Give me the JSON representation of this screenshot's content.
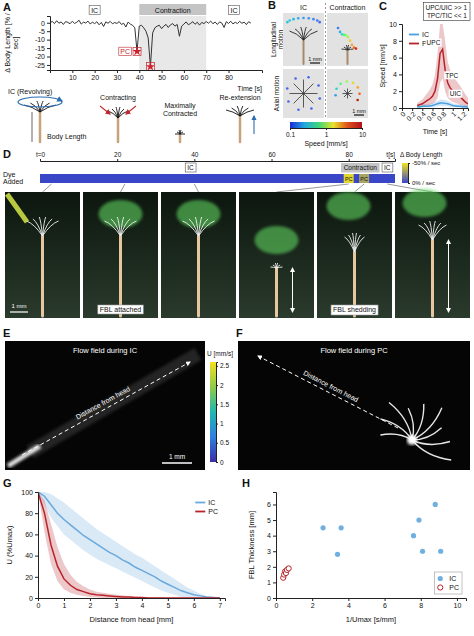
{
  "chart_data": [
    {
      "panel": "A",
      "type": "line",
      "y_label": "Δ Body Length [% / sec]",
      "x_label": "Time [s]",
      "color": "#333333",
      "xlim": [
        0,
        95
      ],
      "xticks": [
        10,
        20,
        30,
        40,
        50,
        60,
        70,
        80
      ],
      "ylim": [
        -28,
        4
      ],
      "yticks": [
        -25,
        -20,
        -15,
        -10,
        -5,
        0
      ],
      "x": [
        0,
        1,
        2,
        3,
        4,
        5,
        6,
        7,
        8,
        9,
        10,
        11,
        12,
        13,
        14,
        15,
        16,
        17,
        18,
        19,
        20,
        21,
        22,
        23,
        24,
        25,
        26,
        27,
        28,
        29,
        30,
        31,
        32,
        33,
        34,
        35,
        36,
        37,
        38,
        39,
        40,
        41,
        42,
        43,
        44,
        45,
        46,
        47,
        48,
        49,
        50,
        51,
        52,
        53,
        54,
        55,
        56,
        57,
        58,
        59,
        60,
        61,
        62,
        63,
        64,
        65,
        66,
        67,
        68,
        69,
        70,
        71,
        72,
        73,
        74,
        75,
        76,
        77,
        78,
        79,
        80,
        81,
        82,
        83,
        84,
        85,
        86,
        87,
        88,
        89,
        90
      ],
      "values": [
        0,
        0.8,
        -0.5,
        1.2,
        -0.3,
        0.5,
        -1,
        0.7,
        0.2,
        -0.6,
        0.9,
        -0.4,
        0.3,
        1.5,
        -0.8,
        0.4,
        -0.2,
        1,
        -0.7,
        0.3,
        -0.5,
        0.6,
        -1.2,
        0.2,
        -2.2,
        0.5,
        -0.3,
        0.8,
        -0.6,
        0.1,
        -0.4,
        0.7,
        -1,
        -0.3,
        -2.5,
        0.4,
        -0.8,
        -1.5,
        -3,
        -17,
        -2,
        -1.5,
        -3,
        -5,
        -9,
        -26,
        -6,
        -3,
        -2,
        -1.5,
        -3.5,
        -2,
        -1,
        -2.8,
        -1.2,
        -0.5,
        -2,
        -1,
        -8,
        -2,
        -0.8,
        0.5,
        -1.2,
        -0.4,
        0.6,
        -0.9,
        0.3,
        -1.4,
        0.2,
        -0.5,
        0.7,
        -0.3,
        1,
        -0.6,
        0.4,
        -1,
        0.5,
        -0.2,
        -2.8,
        0.6,
        -0.4,
        0.9,
        -0.7,
        0.3,
        -0.5,
        0.8,
        -0.3,
        0.4,
        -1.1,
        0.6,
        -0.2
      ],
      "phases": [
        {
          "label": "IC",
          "x0": 0,
          "x1": 40
        },
        {
          "label": "Contraction",
          "x0": 40,
          "x1": 70
        },
        {
          "label": "IC",
          "x0": 70,
          "x1": 95
        }
      ],
      "shade": {
        "x0": 40,
        "x1": 70
      },
      "peaks": [
        {
          "x": 39,
          "y": -17
        },
        {
          "x": 45,
          "y": -26
        }
      ],
      "peak_label": "PC",
      "cartoon_labels": [
        "IC (Revolving)",
        "Body Length",
        "Contracting",
        "Maximally Contracted",
        "Re-extension"
      ]
    },
    {
      "panel": "C",
      "type": "line",
      "x_label": "Time [s]",
      "y_label": "Speed [mm/s]",
      "xlim": [
        0,
        1.3
      ],
      "xticks": [
        0,
        0.2,
        0.4,
        0.6,
        0.8,
        1,
        1.2
      ],
      "ylim": [
        0,
        10
      ],
      "yticks": [
        0,
        2,
        4,
        6,
        8,
        10
      ],
      "legend": "top-left",
      "x": [
        0.3,
        0.35,
        0.4,
        0.45,
        0.5,
        0.55,
        0.6,
        0.65,
        0.7,
        0.75,
        0.8,
        0.85,
        0.9,
        0.95,
        1,
        1.05,
        1.1,
        1.15,
        1.2,
        1.25,
        1.3
      ],
      "series": [
        {
          "name": "IC",
          "color": "#4a9fe0",
          "values": [
            0.15,
            0.15,
            0.2,
            0.2,
            0.2,
            0.25,
            0.3,
            0.4,
            0.5,
            0.6,
            0.6,
            0.55,
            0.5,
            0.4,
            0.3,
            0.25,
            0.2,
            0.2,
            0.15,
            0.15,
            0.1
          ],
          "upper": [
            0.4,
            0.4,
            0.45,
            0.45,
            0.45,
            0.5,
            0.6,
            0.7,
            0.85,
            1,
            1,
            0.95,
            0.85,
            0.7,
            0.55,
            0.5,
            0.45,
            0.45,
            0.4,
            0.4,
            0.35
          ],
          "lower": [
            0,
            0,
            0.05,
            0.05,
            0.05,
            0.1,
            0.1,
            0.15,
            0.2,
            0.25,
            0.25,
            0.2,
            0.2,
            0.15,
            0.1,
            0.1,
            0.05,
            0.05,
            0,
            0,
            0
          ]
        },
        {
          "name": "PC",
          "color": "#b8232a",
          "values": [
            0.3,
            0.4,
            0.5,
            0.7,
            0.9,
            1.1,
            1.4,
            2,
            3.5,
            6.5,
            7,
            4.5,
            3,
            2.4,
            2,
            1.8,
            1.6,
            1.3,
            1,
            0.7,
            0.5
          ],
          "upper": [
            0.6,
            0.8,
            1,
            1.4,
            1.8,
            2.2,
            2.8,
            4,
            6.5,
            10,
            10,
            8,
            5.5,
            4.5,
            3.8,
            3.4,
            3,
            2.6,
            2.1,
            1.6,
            1.2
          ],
          "lower": [
            0.1,
            0.1,
            0.15,
            0.2,
            0.3,
            0.4,
            0.5,
            0.7,
            1.2,
            3,
            3.5,
            2,
            1.2,
            0.9,
            0.7,
            0.6,
            0.5,
            0.4,
            0.3,
            0.2,
            0.1
          ]
        }
      ],
      "annotations": [
        {
          "text": "UPC",
          "x": 0.62,
          "y": 7.5
        },
        {
          "text": "TPC",
          "x": 0.98,
          "y": 3.6
        },
        {
          "text": "UIC",
          "x": 1.05,
          "y": 1.4
        }
      ],
      "ratio_box": [
        "UPC/UIC >> 1",
        "TPC/TIC << 1"
      ]
    },
    {
      "panel": "G",
      "type": "line",
      "x_label": "Distance from head [mm]",
      "y_label": "U (%Umax)",
      "xlim": [
        0,
        7.2
      ],
      "xticks": [
        0,
        1,
        2,
        3,
        4,
        5,
        6,
        7
      ],
      "ylim": [
        0,
        100
      ],
      "yticks": [
        0,
        20,
        40,
        60,
        80,
        100
      ],
      "legend": "top-right",
      "x": [
        0,
        0.25,
        0.5,
        0.75,
        1,
        1.25,
        1.5,
        1.75,
        2,
        2.25,
        2.5,
        2.75,
        3,
        3.25,
        3.5,
        3.75,
        4,
        4.25,
        4.5,
        4.75,
        5,
        5.25,
        5.5,
        5.75,
        6,
        6.25,
        6.5,
        6.75,
        7
      ],
      "series": [
        {
          "name": "IC",
          "color": "#6aa9dc",
          "values": [
            100,
            96,
            88,
            80,
            74,
            69,
            64,
            59,
            55,
            51,
            47,
            43,
            40,
            36,
            33,
            29,
            26,
            23,
            20,
            16,
            13,
            10,
            7,
            5,
            3,
            2,
            1,
            0.5,
            0
          ],
          "upper": [
            100,
            100,
            98,
            94,
            90,
            85,
            80,
            75,
            70,
            65,
            61,
            57,
            53,
            49,
            45,
            41,
            38,
            34,
            30,
            26,
            22,
            18,
            14,
            10,
            7,
            4,
            2,
            1,
            0.5
          ],
          "lower": [
            100,
            88,
            76,
            68,
            60,
            55,
            50,
            45,
            41,
            37,
            34,
            31,
            28,
            25,
            22,
            19,
            16,
            13,
            10,
            7,
            5,
            3,
            1,
            0,
            0,
            0,
            0,
            0,
            0
          ]
        },
        {
          "name": "PC",
          "color": "#b8232a",
          "values": [
            100,
            80,
            50,
            30,
            18,
            12,
            8,
            6,
            4,
            3,
            2.5,
            2,
            1.5,
            1,
            1,
            0.5,
            0.5,
            0,
            0,
            0,
            0,
            0,
            0,
            0,
            0,
            0,
            0,
            0,
            0
          ],
          "upper": [
            100,
            92,
            70,
            48,
            32,
            22,
            15,
            11,
            8,
            6,
            5,
            4,
            3,
            2.5,
            2,
            1.5,
            1,
            1,
            0.5,
            0.5,
            0,
            0,
            0,
            0,
            0,
            0,
            0,
            0,
            0
          ],
          "lower": [
            100,
            62,
            32,
            16,
            8,
            5,
            3,
            2,
            1,
            0.5,
            0,
            0,
            0,
            0,
            0,
            0,
            0,
            0,
            0,
            0,
            0,
            0,
            0,
            0,
            0,
            0,
            0,
            0,
            0
          ]
        }
      ]
    },
    {
      "panel": "H",
      "type": "scatter",
      "x_label": "1/Umax [s/mm]",
      "y_label": "FBL Thickness [mm]",
      "xlim": [
        0,
        10.5
      ],
      "xticks": [
        0,
        2,
        4,
        6,
        8,
        10
      ],
      "ylim": [
        0,
        6.8
      ],
      "yticks": [
        0,
        1,
        2,
        3,
        4,
        5,
        6
      ],
      "legend": "bottom-right",
      "series": [
        {
          "name": "IC",
          "color": "#6fb0e0",
          "marker": "circle",
          "x": [
            2.6,
            3.4,
            3.6,
            7.6,
            7.9,
            8.1,
            8.8,
            9.1
          ],
          "values": [
            4.5,
            2.8,
            4.5,
            4,
            5,
            3,
            6,
            3
          ]
        },
        {
          "name": "PC",
          "color": "#b8232a",
          "marker": "open_circle",
          "x": [
            0.4,
            0.45,
            0.5,
            0.55,
            0.6,
            0.7
          ],
          "values": [
            1.3,
            1.5,
            1.7,
            1.6,
            1.8,
            1.9
          ]
        }
      ]
    }
  ],
  "panels": {
    "B": {
      "letter": "B",
      "columns": [
        "IC",
        "Contraction"
      ],
      "rows": [
        "Longitudinal motion",
        "Axial motion"
      ],
      "scale_bars": [
        "1 mm",
        "1 mm"
      ],
      "colorbar": {
        "title": "Speed [mm/s]",
        "range": [
          0.1,
          10
        ],
        "ticks": [
          0.1,
          1,
          10
        ],
        "log": true
      }
    },
    "D": {
      "letter": "D",
      "dye_label": "Dye Added",
      "xlim": [
        0,
        92
      ],
      "xticks": [
        {
          "value": 0,
          "label": "t=0"
        },
        20,
        40,
        60,
        80
      ],
      "x_label": "t[s]",
      "phases": [
        {
          "label": "IC",
          "x0": 0,
          "x1": 78
        },
        {
          "label": "Contraction",
          "x0": 78,
          "x1": 88
        },
        {
          "label": "IC",
          "x0": 88,
          "x1": 92
        }
      ],
      "shade": {
        "x0": 78,
        "x1": 88
      },
      "pc_label": "PC",
      "pc_times": [
        80,
        84
      ],
      "pc_values": [
        -45,
        -30
      ],
      "colorbar": {
        "title": "Δ Body Length",
        "range": [
          -50,
          0
        ],
        "ticks": [
          {
            "value": -50,
            "label": "-50% / sec"
          },
          {
            "value": 0,
            "label": "0% / sec"
          }
        ]
      },
      "frame_times": [
        3,
        22,
        40,
        80,
        84,
        90
      ],
      "labels": [
        {
          "text": "FBL attached",
          "time": 22
        },
        {
          "text": "FBL shedding",
          "time": 84
        }
      ],
      "scale_bar": "1 mm"
    },
    "E": {
      "letter": "E",
      "title": "Flow field during IC",
      "arrow_label": "Distance from head",
      "scale_bar": "1 mm"
    },
    "F": {
      "letter": "F",
      "title": "Flow field during PC",
      "arrow_label": "Distance from head"
    },
    "flow_colorbar": {
      "title": "U [mm/s]",
      "range": [
        0,
        2.6
      ],
      "ticks": [
        0,
        0.5,
        1,
        1.5,
        2,
        2.5
      ]
    }
  }
}
